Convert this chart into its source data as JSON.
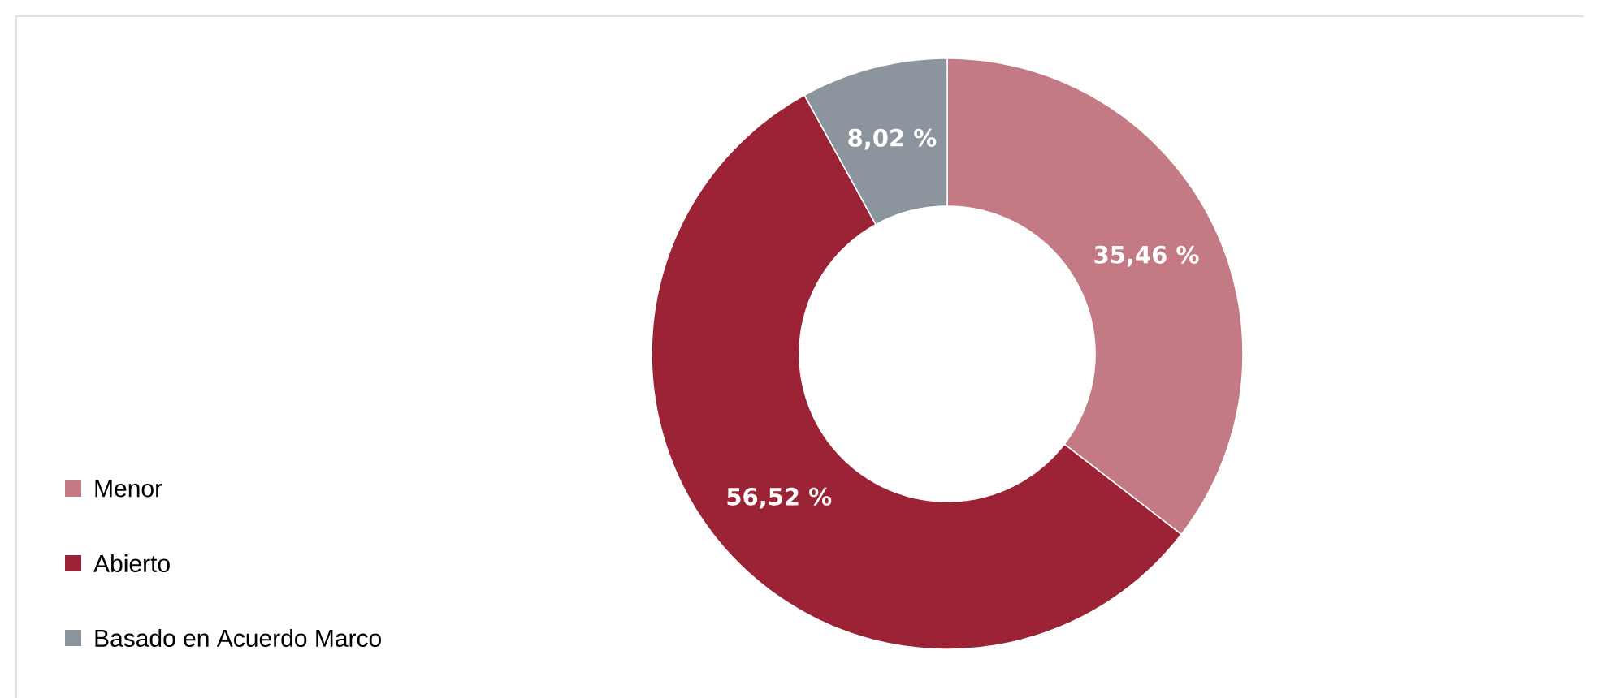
{
  "chart_data": {
    "type": "donut",
    "categories": [
      "Menor",
      "Abierto",
      "Basado en Acuerdo Marco"
    ],
    "values": [
      35.46,
      56.52,
      8.02
    ],
    "colors": [
      "#c47a84",
      "#9b2335",
      "#8c959d"
    ],
    "value_labels": [
      "35,46 %",
      "56,52 %",
      "8,02 %"
    ],
    "legend": "bottom left"
  }
}
